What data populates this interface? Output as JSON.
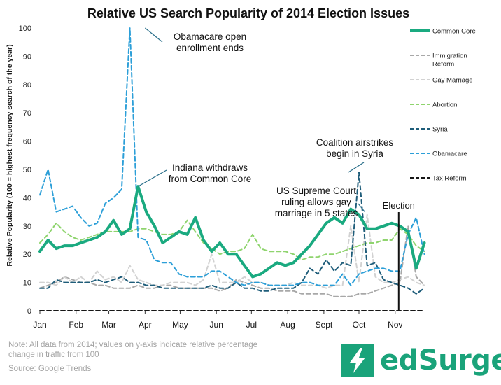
{
  "colors": {
    "common_core": "#1aaa80",
    "immigration": "#a8a8a8",
    "gay_marriage": "#d2d2d2",
    "abortion": "#8fd46e",
    "syria": "#1f5d7a",
    "obamacare": "#2c9fd8",
    "tax_reform": "#161616",
    "brand": "#1aa37a"
  },
  "chart_data": {
    "type": "line",
    "title": "Relative US Search Popularity of 2014 Election Issues",
    "xlabel": "",
    "ylabel": "Relative Popularity (100 = highest frequency search of the year)",
    "ylim": [
      0,
      100
    ],
    "yticks": [
      0,
      10,
      20,
      30,
      40,
      50,
      60,
      70,
      80,
      90,
      100
    ],
    "xlim": [
      "2014-01-01",
      "2014-12-31"
    ],
    "x_tick_labels": [
      "Jan",
      "Feb",
      "Mar",
      "Apr",
      "May",
      "Jun",
      "Jul",
      "Aug",
      "Sept",
      "Oct",
      "Nov"
    ],
    "x": [
      "2014-01-01",
      "2014-01-08",
      "2014-01-15",
      "2014-01-22",
      "2014-01-29",
      "2014-02-05",
      "2014-02-12",
      "2014-02-19",
      "2014-02-26",
      "2014-03-05",
      "2014-03-12",
      "2014-03-19",
      "2014-03-26",
      "2014-04-02",
      "2014-04-09",
      "2014-04-16",
      "2014-04-23",
      "2014-04-30",
      "2014-05-07",
      "2014-05-14",
      "2014-05-21",
      "2014-05-28",
      "2014-06-04",
      "2014-06-11",
      "2014-06-18",
      "2014-06-25",
      "2014-07-02",
      "2014-07-09",
      "2014-07-16",
      "2014-07-23",
      "2014-07-30",
      "2014-08-06",
      "2014-08-13",
      "2014-08-20",
      "2014-08-27",
      "2014-09-03",
      "2014-09-10",
      "2014-09-17",
      "2014-09-24",
      "2014-10-01",
      "2014-10-08",
      "2014-10-15",
      "2014-10-22",
      "2014-10-29",
      "2014-11-05",
      "2014-11-12",
      "2014-11-19",
      "2014-11-26"
    ],
    "series": [
      {
        "name": "Common Core",
        "color_key": "common_core",
        "dash": "solid",
        "width": 4,
        "values": [
          21,
          25,
          22,
          23,
          23,
          24,
          25,
          26,
          28,
          32,
          27,
          29,
          44,
          35,
          30,
          24,
          26,
          28,
          27,
          33,
          25,
          21,
          24,
          20,
          20,
          16,
          12,
          13,
          15,
          17,
          16,
          17,
          20,
          23,
          27,
          31,
          33,
          31,
          36,
          34,
          29,
          29,
          30,
          31,
          30,
          28,
          15,
          24
        ]
      },
      {
        "name": "Immigration Reform",
        "color_key": "immigration",
        "dash": "6,4",
        "width": 2,
        "values": [
          8,
          9,
          10,
          12,
          11,
          10,
          10,
          9,
          9,
          8,
          8,
          8,
          9,
          8,
          8,
          9,
          9,
          8,
          8,
          8,
          8,
          8,
          7,
          8,
          11,
          10,
          9,
          8,
          8,
          7,
          7,
          7,
          6,
          6,
          6,
          6,
          5,
          5,
          5,
          6,
          6,
          7,
          8,
          9,
          10,
          30,
          12,
          9
        ]
      },
      {
        "name": "Gay Marriage",
        "color_key": "gay_marriage",
        "dash": "6,4",
        "width": 2,
        "values": [
          10,
          10,
          9,
          12,
          10,
          12,
          10,
          14,
          11,
          12,
          10,
          16,
          11,
          10,
          9,
          9,
          10,
          10,
          10,
          9,
          11,
          20,
          10,
          10,
          10,
          12,
          10,
          10,
          9,
          9,
          9,
          10,
          9,
          9,
          9,
          8,
          9,
          9,
          30,
          10,
          34,
          12,
          10,
          10,
          11,
          12,
          10,
          9
        ]
      },
      {
        "name": "Abortion",
        "color_key": "abortion",
        "dash": "6,4",
        "width": 2,
        "values": [
          24,
          27,
          31,
          28,
          26,
          25,
          26,
          27,
          28,
          28,
          28,
          28,
          29,
          29,
          28,
          27,
          27,
          28,
          32,
          28,
          24,
          22,
          20,
          21,
          21,
          22,
          27,
          22,
          21,
          21,
          21,
          20,
          18,
          19,
          19,
          20,
          20,
          21,
          22,
          23,
          24,
          24,
          25,
          25,
          29,
          27,
          23,
          21
        ]
      },
      {
        "name": "Syria",
        "color_key": "syria",
        "dash": "6,4",
        "width": 2,
        "values": [
          8,
          8,
          11,
          10,
          10,
          10,
          10,
          11,
          10,
          11,
          12,
          10,
          10,
          9,
          9,
          8,
          8,
          8,
          8,
          8,
          8,
          9,
          8,
          8,
          10,
          8,
          8,
          7,
          7,
          8,
          8,
          8,
          10,
          15,
          13,
          18,
          14,
          17,
          16,
          49,
          16,
          17,
          11,
          10,
          9,
          8,
          6,
          8
        ]
      },
      {
        "name": "Obamacare",
        "color_key": "obamacare",
        "dash": "6,4",
        "width": 2,
        "values": [
          41,
          50,
          35,
          36,
          37,
          33,
          30,
          31,
          38,
          40,
          43,
          100,
          26,
          25,
          18,
          17,
          17,
          13,
          12,
          12,
          12,
          14,
          14,
          12,
          10,
          9,
          10,
          10,
          9,
          9,
          9,
          9,
          10,
          10,
          9,
          9,
          9,
          13,
          9,
          13,
          14,
          15,
          15,
          14,
          14,
          27,
          33,
          20
        ]
      },
      {
        "name": "Tax Reform",
        "color_key": "tax_reform",
        "dash": "6,4",
        "width": 2,
        "values": [
          0,
          0,
          0,
          0,
          0,
          0,
          0,
          0,
          0,
          0,
          0,
          0,
          0,
          0,
          0,
          0,
          0,
          0,
          0,
          0,
          0,
          0,
          0,
          0,
          0,
          0,
          0,
          0,
          0,
          0,
          0,
          0,
          0,
          0,
          0,
          0,
          0,
          0,
          0,
          0,
          0,
          0,
          0,
          0,
          0,
          0,
          0,
          0
        ]
      }
    ],
    "legend_position": "right",
    "grid": false,
    "annotations": [
      {
        "label": "Obamacare open enrollment ends",
        "lines": [
          "Obamacare open",
          "enrollment ends"
        ],
        "x": "2014-04-01",
        "y": 100
      },
      {
        "label": "Indiana withdraws from Common Core",
        "lines": [
          "Indiana withdraws",
          "from Common Core"
        ],
        "x": "2014-03-26",
        "y": 44
      },
      {
        "label": "Coalition airstrikes begin in Syria",
        "lines": [
          "Coalition airstrikes",
          "begin in Syria"
        ],
        "x": "2014-09-22",
        "y": 49
      },
      {
        "label": "US Supreme Court ruling allows gay marriage in 5 states",
        "lines": [
          "US Supreme Court",
          "ruling allows gay",
          "marriage in 5 states"
        ],
        "x": "2014-10-06",
        "y": 35
      }
    ],
    "event_markers": [
      {
        "label": "Election",
        "x": "2014-11-04"
      }
    ]
  },
  "footer": {
    "note": "Note: All data from 2014; values on y-axis indicate relative percentage change in traffic from 100",
    "source": "Source: Google Trends"
  },
  "brand": {
    "name": "edSurge",
    "icon": "lightning-bolt-icon"
  }
}
